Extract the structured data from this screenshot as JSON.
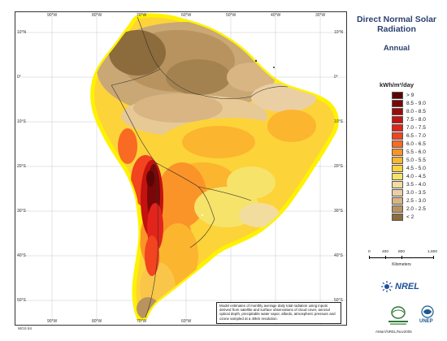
{
  "title": "Direct Normal Solar Radiation",
  "subtitle": "Annual",
  "legend": {
    "unit": "kWh/m²/day",
    "classes": [
      {
        "label": "> 9",
        "color": "#5b0404"
      },
      {
        "label": "8.5 - 9.0",
        "color": "#7a0707"
      },
      {
        "label": "8.0 - 8.5",
        "color": "#9c0a0a"
      },
      {
        "label": "7.5 - 8.0",
        "color": "#c3120f"
      },
      {
        "label": "7.0 - 7.5",
        "color": "#e3241a"
      },
      {
        "label": "6.5 - 7.0",
        "color": "#f2441e"
      },
      {
        "label": "6.0 - 6.5",
        "color": "#f96a22"
      },
      {
        "label": "5.5 - 6.0",
        "color": "#fb9428"
      },
      {
        "label": "5.0 - 5.5",
        "color": "#fcb52f"
      },
      {
        "label": "4.5 - 5.0",
        "color": "#fdd33a"
      },
      {
        "label": "4.0 - 4.5",
        "color": "#f6e36a"
      },
      {
        "label": "3.5 - 4.0",
        "color": "#f3dd9e"
      },
      {
        "label": "3.0 - 3.5",
        "color": "#ebcfa4"
      },
      {
        "label": "2.5 - 3.0",
        "color": "#d8b583"
      },
      {
        "label": "2.0 - 2.5",
        "color": "#b9935f"
      },
      {
        "label": "< 2",
        "color": "#8c6b3c"
      }
    ]
  },
  "scale": {
    "ticks": [
      "0",
      "400",
      "800",
      "1,600"
    ],
    "unit": "Kilometers"
  },
  "axes": {
    "lon_labels": [
      "90°W",
      "80°W",
      "70°W",
      "60°W",
      "50°W",
      "40°W",
      "30°W"
    ],
    "lat_labels": [
      "10°N",
      "0°",
      "10°S",
      "20°S",
      "30°S",
      "40°S",
      "50°S"
    ]
  },
  "logos": {
    "nrel": "NREL",
    "unep": "UNEP",
    "gef": "GEF logo"
  },
  "note": "Model estimates of monthly average daily total radiation using inputs derived from satellite and surface observations of cloud cover, aerosol optical depth, precipitable water vapor, albedo, atmospheric pressure and ozone sampled at a 40km resolution.",
  "datum": "WGS 84",
  "credit": "AMarr/NREL/Nov2005",
  "colors": {
    "ocean": "#ffffff",
    "coast_outline": "#fff200",
    "title": "#2c3f6e"
  }
}
